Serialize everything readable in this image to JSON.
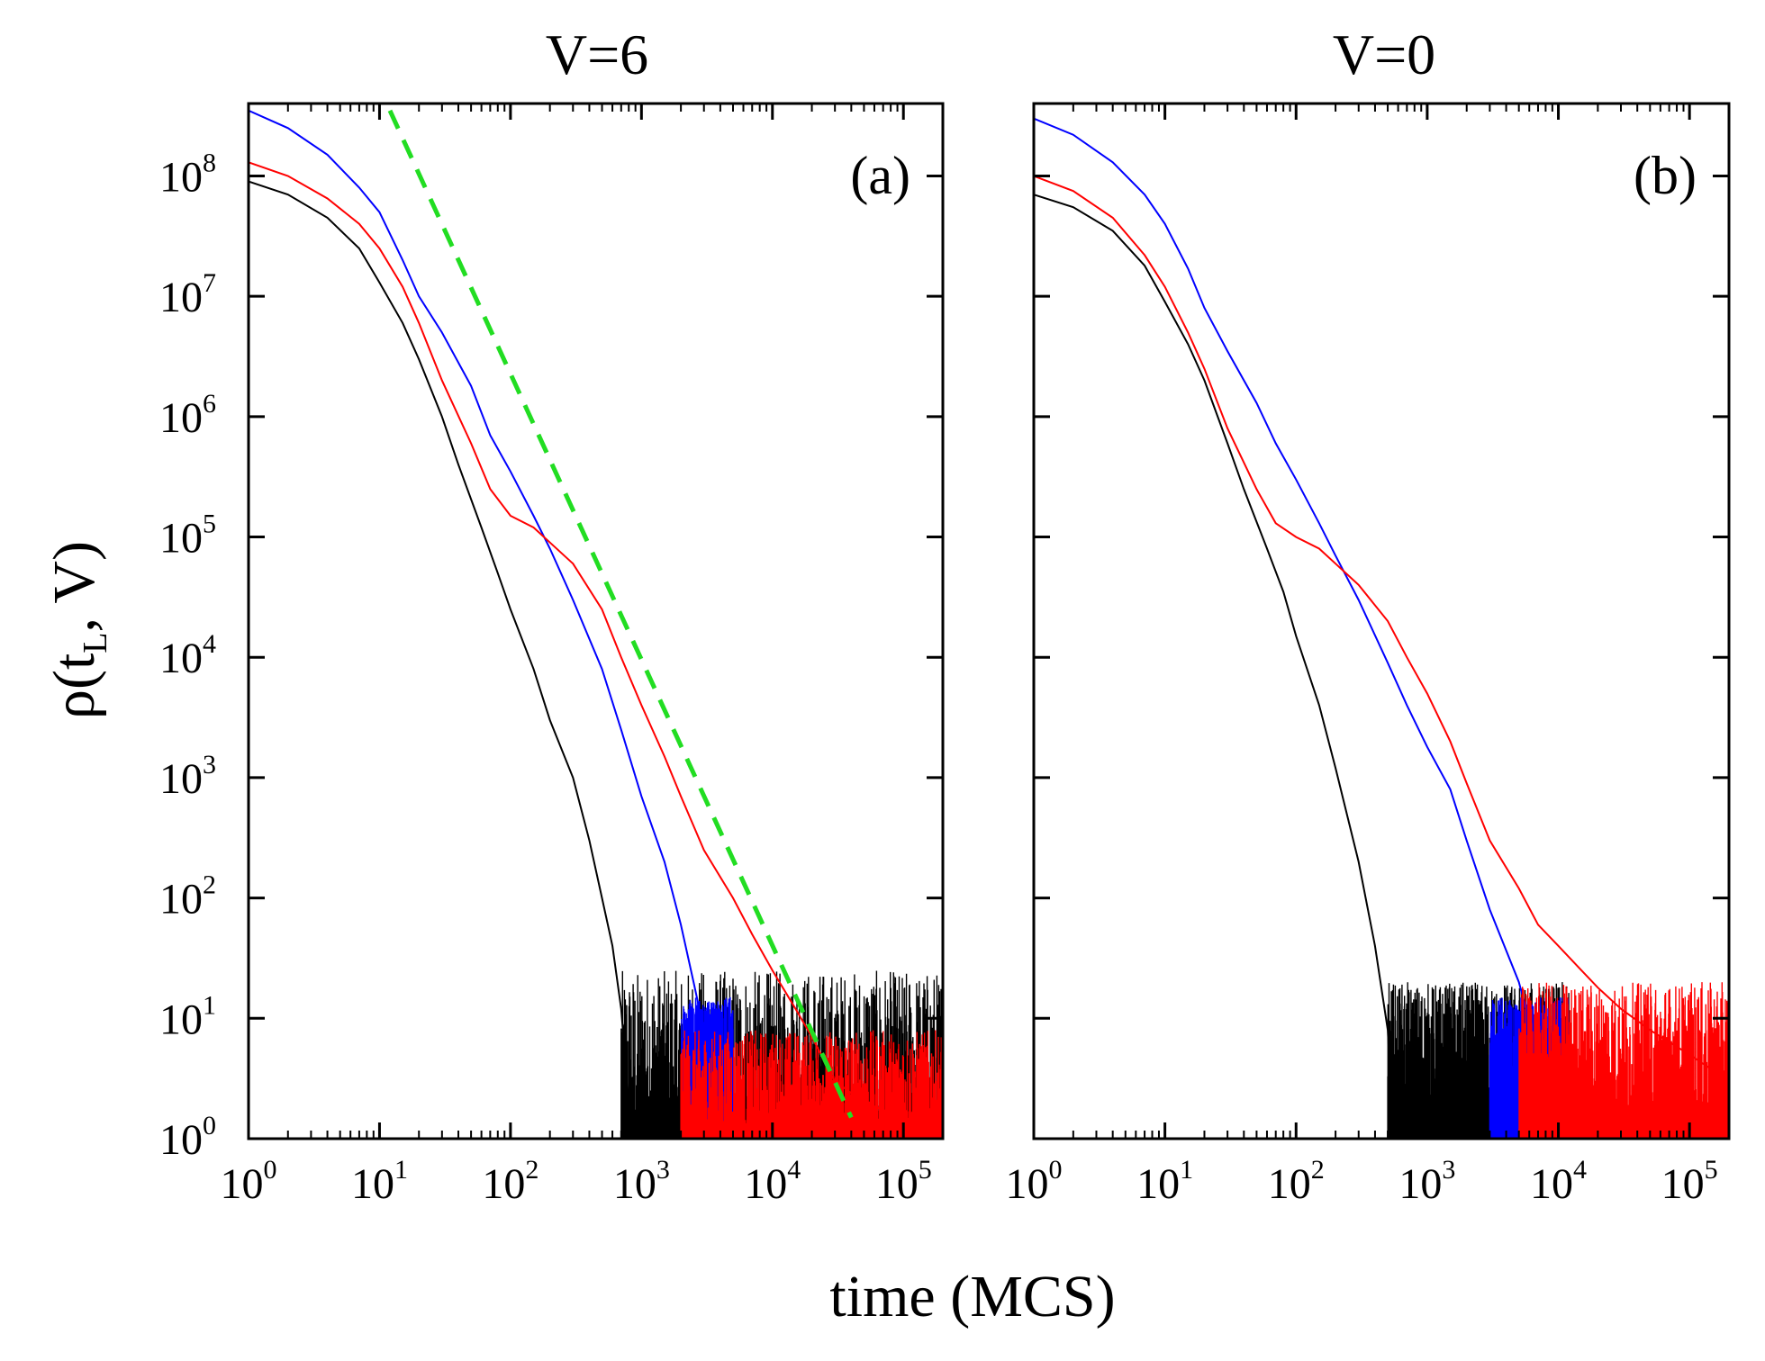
{
  "figure": {
    "xlabel": "time (MCS)",
    "ylabel_main": "ρ(t",
    "ylabel_sub": "L",
    "ylabel_end": ", V)"
  },
  "colors": {
    "black_series": "#000000",
    "red_series": "#ff0000",
    "blue_series": "#0000ff",
    "fit_line": "#22dd22"
  },
  "chart_data": [
    {
      "type": "line",
      "title": "V=6",
      "panel_label": "(a)",
      "x_scale": "log",
      "y_scale": "log",
      "xlim": [
        1,
        200000
      ],
      "ylim": [
        1,
        400000000
      ],
      "x_tick_labels": [
        "10^0",
        "10^1",
        "10^2",
        "10^3",
        "10^4",
        "10^5"
      ],
      "y_tick_labels": [
        "10^0",
        "10^1",
        "10^2",
        "10^3",
        "10^4",
        "10^5",
        "10^6",
        "10^7",
        "10^8"
      ],
      "series": [
        {
          "color": "black",
          "x": [
            1,
            2,
            4,
            7,
            10,
            15,
            20,
            30,
            40,
            60,
            80,
            100,
            150,
            200,
            300,
            400,
            500,
            600,
            700,
            800
          ],
          "y": [
            90000000,
            70000000,
            45000000,
            25000000,
            13000000,
            6000000,
            3000000,
            1000000,
            400000,
            120000,
            50000,
            25000,
            8000,
            3000,
            1000,
            300,
            100,
            40,
            12,
            2
          ],
          "noise_floor": {
            "x_from": 700,
            "x_to": 200000,
            "y_low": 1,
            "y_high": 25
          }
        },
        {
          "color": "red",
          "x": [
            1,
            2,
            4,
            7,
            10,
            15,
            20,
            30,
            50,
            70,
            100,
            150,
            200,
            300,
            500,
            700,
            1000,
            1500,
            2000,
            3000,
            5000,
            7000,
            10000,
            15000,
            20000,
            30000,
            50000,
            100000,
            200000
          ],
          "y": [
            130000000,
            100000000,
            65000000,
            40000000,
            25000000,
            12000000,
            6000000,
            2000000,
            600000,
            250000,
            150000,
            120000,
            90000,
            60000,
            25000,
            10000,
            4000,
            1500,
            700,
            250,
            100,
            50,
            25,
            12,
            7,
            3,
            2,
            1.5,
            1.2
          ],
          "noise_floor": {
            "x_from": 2000,
            "x_to": 200000,
            "y_low": 1,
            "y_high": 8
          }
        },
        {
          "color": "blue",
          "x": [
            1,
            2,
            4,
            7,
            10,
            15,
            20,
            30,
            50,
            70,
            100,
            150,
            200,
            300,
            500,
            700,
            1000,
            1500,
            2000,
            2500,
            3000,
            4000,
            5000
          ],
          "y": [
            350000000,
            250000000,
            150000000,
            80000000,
            50000000,
            20000000,
            10000000,
            5000000,
            1800000,
            700000,
            350000,
            150000,
            80000,
            30000,
            8000,
            2500,
            700,
            200,
            60,
            20,
            8,
            3,
            1.2
          ],
          "noise_floor": {
            "x_from": 2000,
            "x_to": 5000,
            "y_low": 1,
            "y_high": 15
          }
        },
        {
          "color": "green",
          "style": "dashed",
          "x": [
            12,
            40000
          ],
          "y": [
            350000000,
            1.5
          ]
        }
      ]
    },
    {
      "type": "line",
      "title": "V=0",
      "panel_label": "(b)",
      "x_scale": "log",
      "y_scale": "log",
      "xlim": [
        1,
        200000
      ],
      "ylim": [
        1,
        400000000
      ],
      "x_tick_labels": [
        "10^0",
        "10^1",
        "10^2",
        "10^3",
        "10^4",
        "10^5"
      ],
      "y_tick_labels": [
        "10^0",
        "10^1",
        "10^2",
        "10^3",
        "10^4",
        "10^5",
        "10^6",
        "10^7",
        "10^8"
      ],
      "series": [
        {
          "color": "black",
          "x": [
            1,
            2,
            4,
            7,
            10,
            15,
            20,
            30,
            40,
            60,
            80,
            100,
            150,
            200,
            300,
            400,
            500,
            550
          ],
          "y": [
            70000000,
            55000000,
            35000000,
            18000000,
            9000000,
            4000000,
            2000000,
            600000,
            250000,
            80000,
            35000,
            15000,
            4000,
            1200,
            200,
            40,
            8,
            1
          ],
          "noise_floor": {
            "x_from": 500,
            "x_to": 12000,
            "y_low": 1,
            "y_high": 20
          }
        },
        {
          "color": "red",
          "x": [
            1,
            2,
            4,
            7,
            10,
            15,
            20,
            30,
            50,
            70,
            100,
            150,
            200,
            300,
            500,
            700,
            1000,
            1500,
            2000,
            3000,
            5000,
            7000,
            10000,
            15000,
            20000,
            30000,
            50000,
            100000,
            200000
          ],
          "y": [
            100000000,
            75000000,
            45000000,
            22000000,
            12000000,
            5000000,
            2500000,
            800000,
            250000,
            130000,
            100000,
            80000,
            60000,
            40000,
            20000,
            10000,
            5000,
            2000,
            900,
            300,
            120,
            60,
            40,
            25,
            18,
            12,
            8,
            5,
            3
          ],
          "noise_floor": {
            "x_from": 5000,
            "x_to": 200000,
            "y_low": 1,
            "y_high": 20
          }
        },
        {
          "color": "blue",
          "x": [
            1,
            2,
            4,
            7,
            10,
            15,
            20,
            30,
            50,
            70,
            100,
            150,
            200,
            300,
            500,
            700,
            1000,
            1500,
            2000,
            3000,
            5000,
            7000,
            10000,
            12000
          ],
          "y": [
            300000000,
            220000000,
            130000000,
            70000000,
            40000000,
            17000000,
            8000000,
            3500000,
            1300000,
            600000,
            300000,
            130000,
            70000,
            30000,
            9000,
            4000,
            1800,
            800,
            300,
            80,
            20,
            5,
            1.5,
            1
          ],
          "noise_floor": {
            "x_from": 3000,
            "x_to": 12000,
            "y_low": 1,
            "y_high": 15
          }
        }
      ]
    }
  ]
}
